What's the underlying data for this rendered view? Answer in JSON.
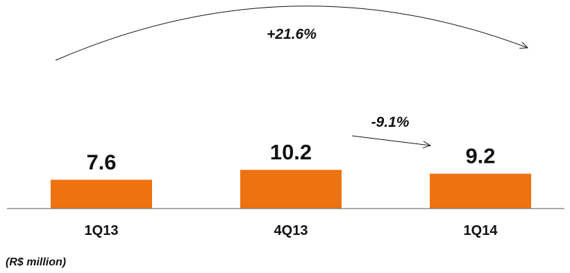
{
  "chart_data": {
    "type": "bar",
    "categories": [
      "1Q13",
      "4Q13",
      "1Q14"
    ],
    "values": [
      7.6,
      10.2,
      9.2
    ],
    "value_labels": [
      "7.6",
      "10.2",
      "9.2"
    ],
    "title": "",
    "xlabel": "",
    "ylabel": "",
    "ylim": [
      0,
      55
    ],
    "grid": false,
    "bar_color": "#EE720F",
    "annotations": [
      {
        "text": "+21.6%",
        "from_category": "1Q13",
        "to_category": "1Q14",
        "shape": "curved-arrow"
      },
      {
        "text": "-9.1%",
        "from_category": "4Q13",
        "to_category": "1Q14",
        "shape": "straight-arrow"
      }
    ]
  },
  "footnote": "(R$ million)"
}
